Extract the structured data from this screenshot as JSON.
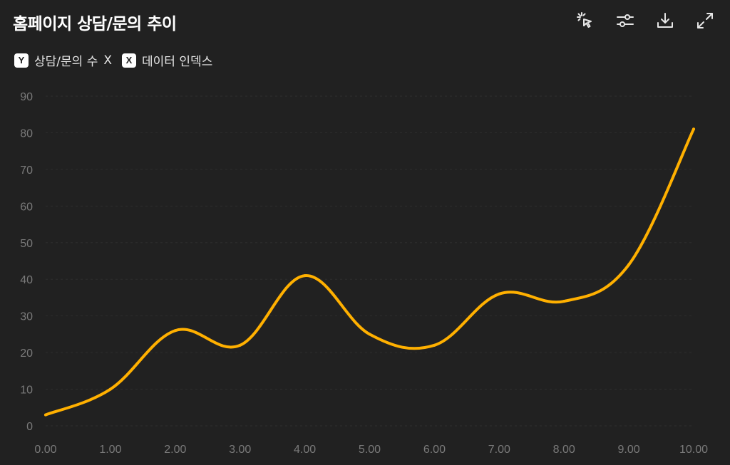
{
  "header": {
    "title": "홈페이지 상담/문의 추이"
  },
  "toolbar": {
    "items": [
      {
        "name": "select-pointer-icon"
      },
      {
        "name": "sliders-icon"
      },
      {
        "name": "download-icon"
      },
      {
        "name": "expand-icon"
      }
    ]
  },
  "legend": {
    "y_badge": "Y",
    "y_label": "상담/문의 수",
    "separator": "X",
    "x_badge": "X",
    "x_label": "데이터 인덱스"
  },
  "colors": {
    "background": "#212121",
    "line": "#FFB000",
    "tick": "#7a7a7a",
    "grid": "#2e2e2e"
  },
  "chart_data": {
    "type": "line",
    "title": "홈페이지 상담/문의 추이",
    "xlabel": "데이터 인덱스",
    "ylabel": "상담/문의 수",
    "x": [
      0,
      1,
      2,
      3,
      4,
      5,
      6,
      7,
      8,
      9,
      10
    ],
    "x_tick_labels": [
      "0.00",
      "1.00",
      "2.00",
      "3.00",
      "4.00",
      "5.00",
      "6.00",
      "7.00",
      "8.00",
      "9.00",
      "10.00"
    ],
    "y_ticks": [
      0,
      10,
      20,
      30,
      40,
      50,
      60,
      70,
      80,
      90
    ],
    "series": [
      {
        "values": [
          3,
          10,
          26,
          22,
          41,
          25,
          22,
          36,
          34,
          44,
          81
        ]
      }
    ],
    "xlim": [
      0,
      10
    ],
    "ylim": [
      0,
      90
    ],
    "grid": true,
    "legend_position": "top-left"
  }
}
